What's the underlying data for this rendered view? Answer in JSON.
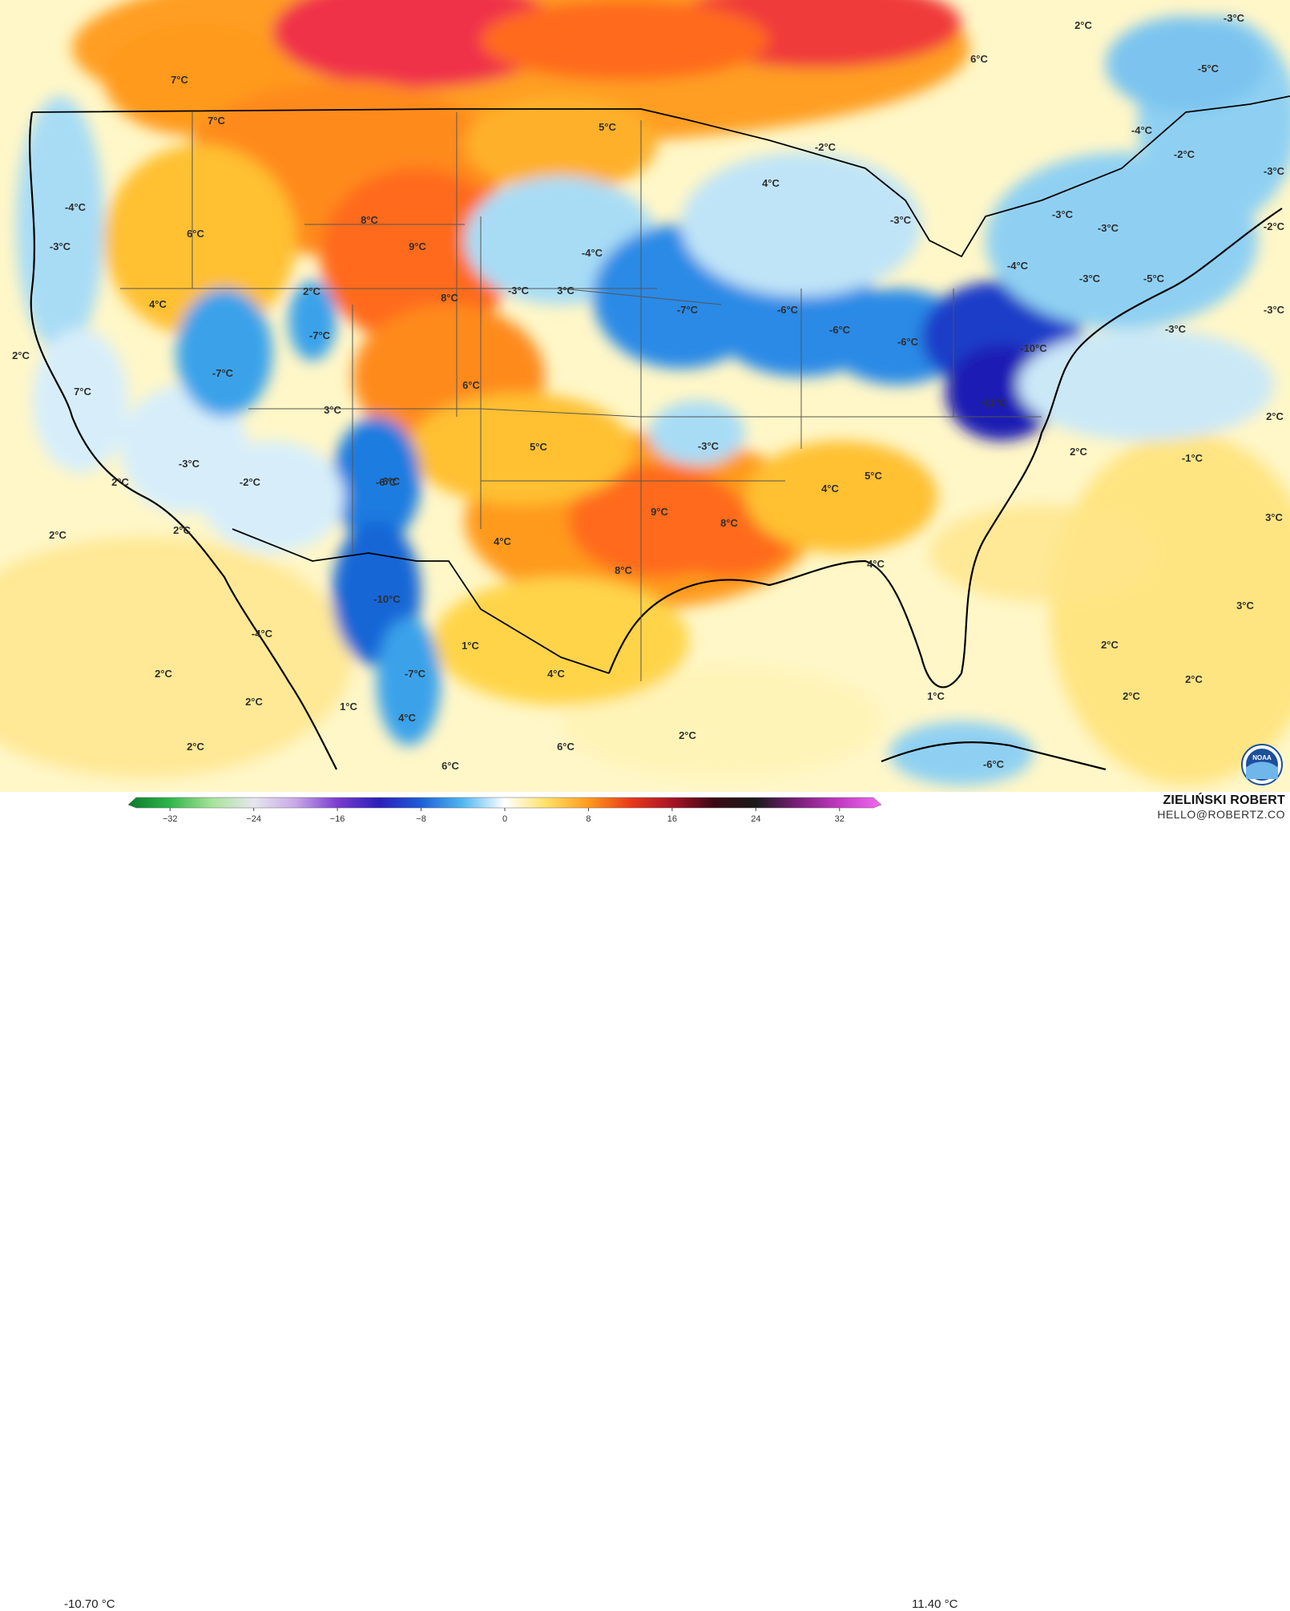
{
  "map": {
    "colors": {
      "ocean_neutral": "#fffbd9",
      "warm_light": "#ffe57a",
      "warm_mid": "#ffc628",
      "warm_orange": "#ff9a1e",
      "warm_strong": "#ff6a1a",
      "warm_max": "#f0293a",
      "cold_light": "#d7eefa",
      "cold_mid": "#8fd0f2",
      "cold_strong": "#3aa2ea",
      "cold_deep": "#1466d6",
      "cold_max": "#1a1cb4",
      "borders": "#5a5a5a",
      "coast": "#000000"
    },
    "labels": [
      {
        "text": "7°C"
      },
      {
        "text": "7°C"
      },
      {
        "text": "5°C"
      },
      {
        "text": "6°C"
      },
      {
        "text": "-2°C"
      },
      {
        "text": "4°C"
      },
      {
        "text": "2°C"
      },
      {
        "text": "-3°C"
      },
      {
        "text": "-5°C"
      },
      {
        "text": "-4°C"
      },
      {
        "text": "-2°C"
      },
      {
        "text": "-3°C"
      },
      {
        "text": "-4°C"
      },
      {
        "text": "-3°C"
      },
      {
        "text": "6°C"
      },
      {
        "text": "8°C"
      },
      {
        "text": "9°C"
      },
      {
        "text": "-4°C"
      },
      {
        "text": "-3°C"
      },
      {
        "text": "-3°C"
      },
      {
        "text": "-3°C"
      },
      {
        "text": "-2°C"
      },
      {
        "text": "-4°C"
      },
      {
        "text": "-3°C"
      },
      {
        "text": "-5°C"
      },
      {
        "text": "-3°C"
      },
      {
        "text": "-3°C"
      },
      {
        "text": "2°C"
      },
      {
        "text": "4°C"
      },
      {
        "text": "-3°C"
      },
      {
        "text": "3°C"
      },
      {
        "text": "8°C"
      },
      {
        "text": "-7°C"
      },
      {
        "text": "-6°C"
      },
      {
        "text": "-6°C"
      },
      {
        "text": "-6°C"
      },
      {
        "text": "-10°C"
      },
      {
        "text": "2°C"
      },
      {
        "text": "-7°C"
      },
      {
        "text": "-7°C"
      },
      {
        "text": "7°C"
      },
      {
        "text": "3°C"
      },
      {
        "text": "6°C"
      },
      {
        "text": "-11°C"
      },
      {
        "text": "2°C"
      },
      {
        "text": "-3°C"
      },
      {
        "text": "5°C"
      },
      {
        "text": "-3°C"
      },
      {
        "text": "2°C"
      },
      {
        "text": "-2°C"
      },
      {
        "text": "-6°C"
      },
      {
        "text": "2°C"
      },
      {
        "text": "-1°C"
      },
      {
        "text": "2°C"
      },
      {
        "text": "5°C"
      },
      {
        "text": "4°C"
      },
      {
        "text": "9°C"
      },
      {
        "text": "8°C"
      },
      {
        "text": "4°C"
      },
      {
        "text": "3°C"
      },
      {
        "text": "8°C"
      },
      {
        "text": "4°C"
      },
      {
        "text": "2°C"
      },
      {
        "text": "-10°C"
      },
      {
        "text": "3°C"
      },
      {
        "text": "-4°C"
      },
      {
        "text": "1°C"
      },
      {
        "text": "2°C"
      },
      {
        "text": "2°C"
      },
      {
        "text": "-7°C"
      },
      {
        "text": "2°C"
      },
      {
        "text": "4°C"
      },
      {
        "text": "2°C"
      },
      {
        "text": "1°C"
      },
      {
        "text": "2°C"
      },
      {
        "text": "4°C"
      },
      {
        "text": "1°C"
      },
      {
        "text": "2°C"
      },
      {
        "text": "2°C"
      },
      {
        "text": "6°C"
      },
      {
        "text": "6°C"
      },
      {
        "text": "-6°C"
      },
      {
        "text": "-6°C"
      }
    ]
  },
  "legend": {
    "min_label": "-10.70 °C",
    "max_label": "11.40 °C",
    "ticks": [
      "−32",
      "−24",
      "−16",
      "−8",
      "0",
      "8",
      "16",
      "24",
      "32"
    ],
    "range": [
      -36,
      36
    ],
    "gradient_stops": [
      {
        "value": -36,
        "color": "#0c7a2a"
      },
      {
        "value": -32,
        "color": "#2fb54a"
      },
      {
        "value": -28,
        "color": "#a7e39a"
      },
      {
        "value": -24,
        "color": "#e6e6ee"
      },
      {
        "value": -20,
        "color": "#c8a8e6"
      },
      {
        "value": -16,
        "color": "#7a3ccf"
      },
      {
        "value": -12,
        "color": "#2a1fb8"
      },
      {
        "value": -8,
        "color": "#1e5fd6"
      },
      {
        "value": -4,
        "color": "#52b8f0"
      },
      {
        "value": 0,
        "color": "#ffffff"
      },
      {
        "value": 4,
        "color": "#ffe066"
      },
      {
        "value": 8,
        "color": "#ff9a1e"
      },
      {
        "value": 12,
        "color": "#e83a1a"
      },
      {
        "value": 16,
        "color": "#a81426"
      },
      {
        "value": 20,
        "color": "#3a0a14"
      },
      {
        "value": 24,
        "color": "#1a1a1a"
      },
      {
        "value": 28,
        "color": "#7a1e7a"
      },
      {
        "value": 32,
        "color": "#c23ac2"
      },
      {
        "value": 36,
        "color": "#f06af0"
      }
    ]
  },
  "credit": {
    "name": "ZIELIŃSKI ROBERT",
    "email": "HELLO@ROBERTZ.CO"
  },
  "logo": {
    "icon": "noaa-logo",
    "text": "NOAA"
  }
}
